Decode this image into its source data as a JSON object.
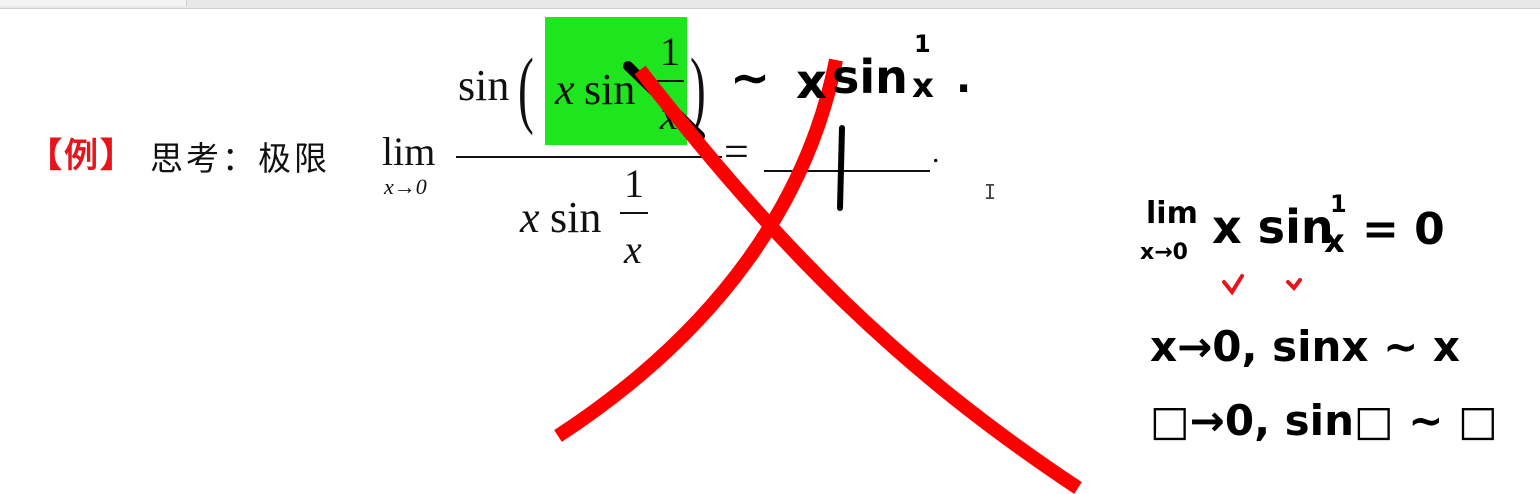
{
  "example": {
    "label": "【例】",
    "prompt": "思考：极限"
  },
  "formula": {
    "lim": "lim",
    "lim_sub": "x→0",
    "num_sin": "sin",
    "num_x": "x",
    "num_sin_inner": "sin",
    "one": "1",
    "x": "x",
    "den_x": "x",
    "den_sin": "sin",
    "equals": "=",
    "answer": "1",
    "period": ".",
    "highlight_color": "#1fe51f"
  },
  "annotations": {
    "equiv_top": "∼ x sin 1/x .",
    "equiv_top_tilde": "∼",
    "equiv_top_x": "x",
    "equiv_top_sin": "sin",
    "equiv_top_one": "1",
    "equiv_top_den": "x",
    "equiv_top_dot": ".",
    "lim_word": "lim",
    "lim_sub": "x→0",
    "lim_expr": "x sin",
    "lim_one": "1",
    "lim_den": "x",
    "lim_result": "= 0",
    "rule1": "x→0, sinx ∼ x",
    "rule2": "□→0, sin□ ∼ □",
    "cross_color": "#ff0000",
    "check_color": "#e8141c"
  }
}
